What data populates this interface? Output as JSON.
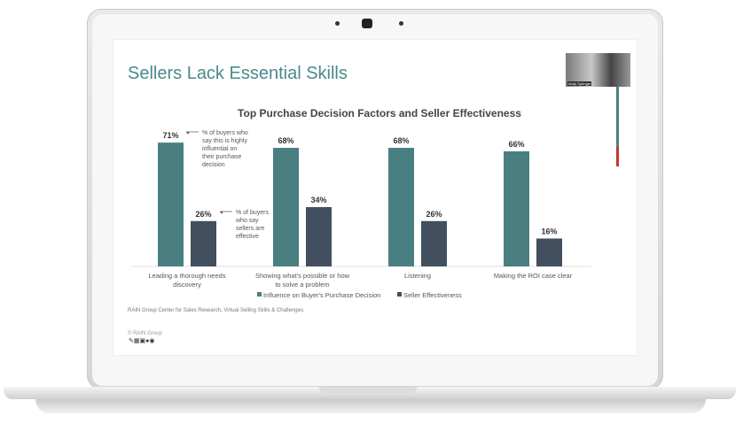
{
  "slide": {
    "title": "Sellers Lack Essential Skills",
    "webcam_name": "Andy Springer",
    "source": "RAIN Group Center for Sales Research, Virtual Selling Skills & Challenges.",
    "copyright": "© RAIN Group",
    "toolbar_icons": [
      "pen-icon",
      "grid-icon",
      "video-icon",
      "zoom-icon",
      "more-icon"
    ]
  },
  "chart_data": {
    "type": "bar",
    "title": "Top Purchase Decision Factors and Seller Effectiveness",
    "categories": [
      "Leading a thorough needs discovery",
      "Showing what's possible or how to solve a problem",
      "Listening",
      "Making the ROI case clear"
    ],
    "series": [
      {
        "name": "Influence on Buyer's Purchase Decision",
        "values": [
          71,
          68,
          68,
          66
        ],
        "color": "#4a7f82"
      },
      {
        "name": "Seller Effectiveness",
        "values": [
          26,
          34,
          26,
          16
        ],
        "color": "#414f5e"
      }
    ],
    "value_suffix": "%",
    "annotations": [
      "% of buyers who say this is highly influential on their purchase decision",
      "% of buyers who say sellers are effective"
    ],
    "ylim": [
      0,
      80
    ],
    "grid": false,
    "legend": "bottom"
  }
}
